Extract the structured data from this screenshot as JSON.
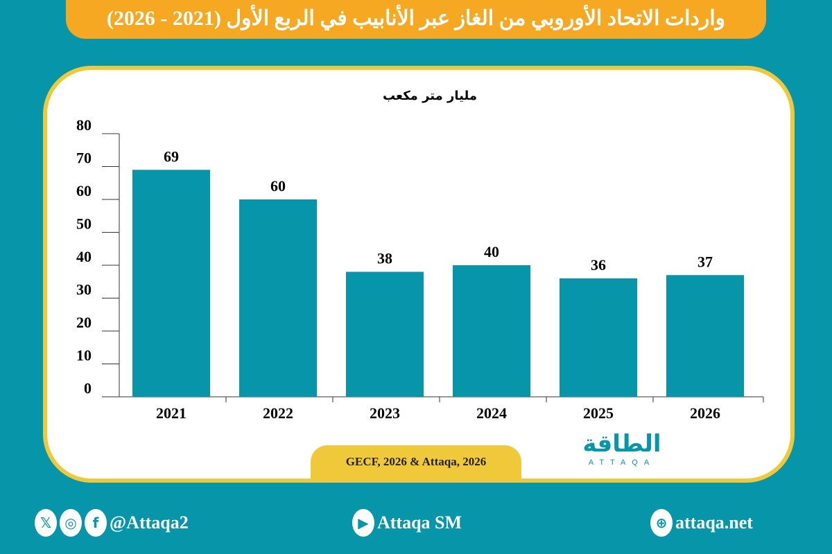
{
  "title": "واردات الاتحاد الأوروبي من الغاز عبر الأنابيب في الربع الأول (2021 - 2026)",
  "chart_data": {
    "type": "bar",
    "ylabel": "مليار متر مكعب",
    "categories": [
      "2021",
      "2022",
      "2023",
      "2024",
      "2025",
      "2026"
    ],
    "values": [
      69,
      60,
      38,
      40,
      36,
      37
    ],
    "ylim": [
      0,
      80
    ],
    "yticks": [
      0,
      10,
      20,
      30,
      40,
      50,
      60,
      70,
      80
    ],
    "grid": false,
    "bar_color": "#0795aa"
  },
  "source": "GECF, 2026 & Attaqa, 2026",
  "logo": {
    "ar": "الطاقة",
    "en": "ATTAQA"
  },
  "footer": {
    "social": "@Attaqa2",
    "youtube": "Attaqa SM",
    "website": "attaqa.net"
  },
  "colors": {
    "background": "#0795aa",
    "title_bg": "#f7a823",
    "border": "#f0c93a"
  }
}
